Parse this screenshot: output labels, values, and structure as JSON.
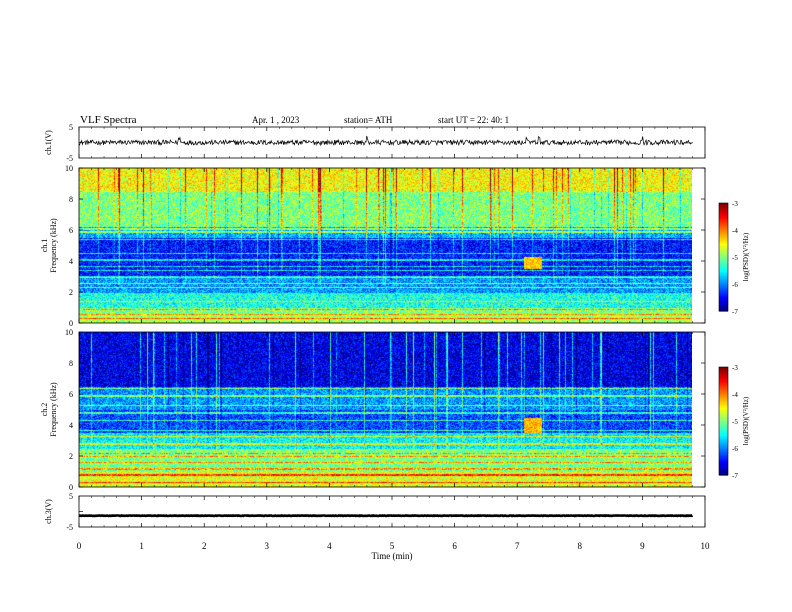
{
  "header": {
    "title": "VLF  Spectra",
    "date": "Apr. 1  , 2023",
    "station": "station= ATH",
    "start": "start  UT  =   22: 40: 1"
  },
  "chart_data": [
    {
      "type": "line",
      "panel": "ch1-waveform",
      "ylabel": "ch.1(V)",
      "ylim": [
        -5,
        5
      ],
      "yticks": [
        "5",
        "-5"
      ],
      "xlim": [
        0,
        10
      ],
      "series": [
        {
          "values_range": [
            -0.8,
            0.8
          ],
          "trace_extent_min": [
            0,
            9.8
          ],
          "spikes_at_min": [
            1.6,
            4.6,
            7.15,
            7.35,
            9.0
          ]
        }
      ]
    },
    {
      "type": "heatmap",
      "panel": "ch1-spectrogram",
      "ylabel": "ch.1\nFrequency (kHz)",
      "ylim": [
        0,
        10
      ],
      "yticks": [
        "0",
        "2",
        "4",
        "6",
        "8",
        "10"
      ],
      "xlim": [
        0,
        10
      ],
      "data_extent_min": [
        0,
        9.8
      ],
      "bands_khz": [
        {
          "range": [
            0,
            0.5
          ],
          "level": -4.8
        },
        {
          "range": [
            0.5,
            1.0
          ],
          "level": -5.0
        },
        {
          "range": [
            1.0,
            2.0
          ],
          "level": -5.4
        },
        {
          "range": [
            2.0,
            3.0
          ],
          "level": -5.9
        },
        {
          "range": [
            3.0,
            5.5
          ],
          "level": -6.4
        },
        {
          "range": [
            5.5,
            6.2
          ],
          "level": -5.8
        },
        {
          "range": [
            6.2,
            8.5
          ],
          "level": -5.0
        },
        {
          "range": [
            8.5,
            10
          ],
          "level": -4.5
        }
      ],
      "lines_khz": [
        0.3,
        0.6,
        0.9,
        1.4,
        2.3,
        2.6,
        3.0,
        3.4,
        3.7,
        4.1,
        4.5,
        5.4,
        5.9,
        6.1
      ],
      "bursts": [
        {
          "t_min": [
            7.1,
            7.4
          ],
          "f_khz": [
            3.5,
            4.3
          ],
          "level": -4.3
        }
      ],
      "colorbar": {
        "label": "log(PSD)(V²/Hz)",
        "range": [
          -7,
          -3
        ],
        "ticks": [
          "-3",
          "-4",
          "-5",
          "-6",
          "-7"
        ]
      }
    },
    {
      "type": "heatmap",
      "panel": "ch2-spectrogram",
      "ylabel": "ch.2\nFrequency (kHz)",
      "ylim": [
        0,
        10
      ],
      "yticks": [
        "0",
        "2",
        "4",
        "6",
        "8",
        "10"
      ],
      "xlim": [
        0,
        10
      ],
      "data_extent_min": [
        0,
        9.8
      ],
      "bands_khz": [
        {
          "range": [
            0,
            1.0
          ],
          "level": -4.6
        },
        {
          "range": [
            1.0,
            2.5
          ],
          "level": -5.0
        },
        {
          "range": [
            2.5,
            3.5
          ],
          "level": -5.5
        },
        {
          "range": [
            3.5,
            5.0
          ],
          "level": -6.2
        },
        {
          "range": [
            5.0,
            6.5
          ],
          "level": -5.9
        },
        {
          "range": [
            6.5,
            10
          ],
          "level": -6.6
        }
      ],
      "lines_khz": [
        0.3,
        0.8,
        1.2,
        1.6,
        2.0,
        2.2,
        2.8,
        3.3,
        3.7,
        4.3,
        4.8,
        5.3,
        5.9,
        6.4
      ],
      "bursts": [
        {
          "t_min": [
            7.1,
            7.4
          ],
          "f_khz": [
            3.5,
            4.5
          ],
          "level": -4.2
        }
      ],
      "colorbar": {
        "label": "log(PSD)(V²/Hz)",
        "range": [
          -7,
          -3
        ],
        "ticks": [
          "-3",
          "-4",
          "-5",
          "-6",
          "-7"
        ]
      }
    },
    {
      "type": "line",
      "panel": "ch3-waveform",
      "ylabel": "ch.3(V)",
      "ylim": [
        -5,
        5
      ],
      "yticks": [
        "5",
        "-5"
      ],
      "xlim": [
        0,
        10
      ],
      "xlabel": "Time  (min)",
      "xticks": [
        "0",
        "1",
        "2",
        "3",
        "4",
        "5",
        "6",
        "7",
        "8",
        "9",
        "10"
      ],
      "series": [
        {
          "values_range": [
            -1.6,
            -1.1
          ],
          "trace_extent_min": [
            0,
            9.8
          ]
        }
      ]
    }
  ]
}
